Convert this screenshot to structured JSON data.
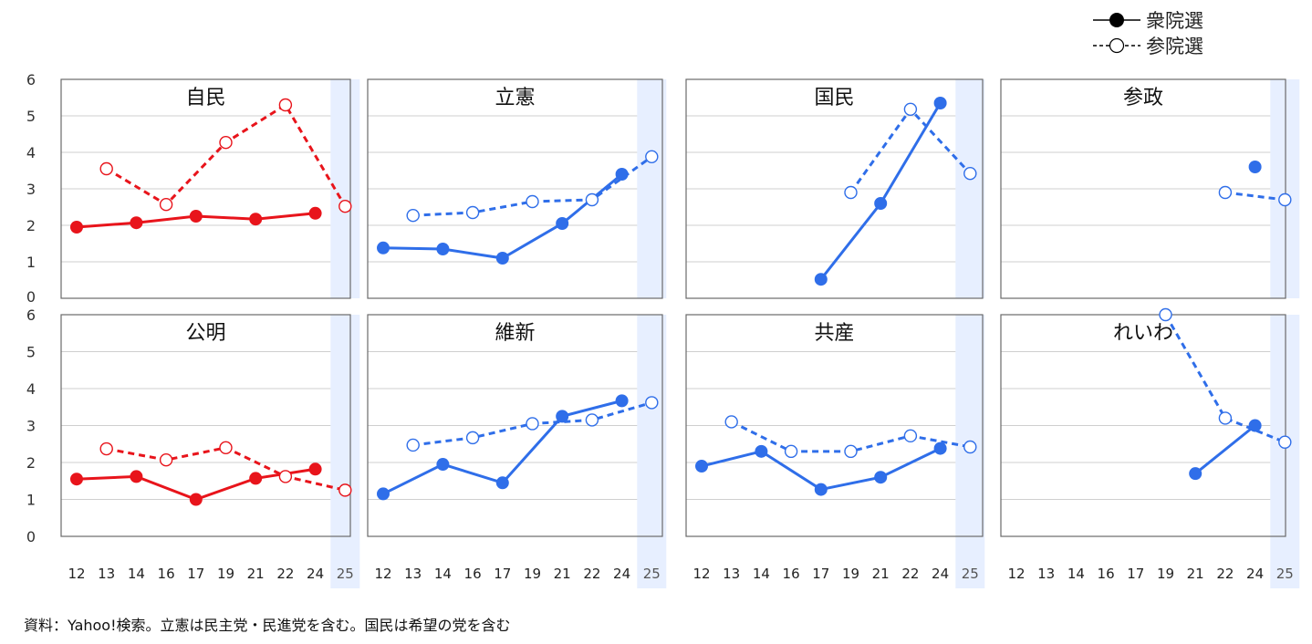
{
  "legend": {
    "shugiin": "衆院選",
    "sangiin": "参院選"
  },
  "source_note": "資料：Yahoo!検索。立憲は民主党・民進党を含む。国民は希望の党を含む",
  "colors": {
    "ldp": "#e8141b",
    "others": "#2f6ee9",
    "highlight": "#e7efff",
    "grid": "#cfcfcf",
    "frame": "#6a6a6a"
  },
  "chart_data": {
    "type": "line",
    "ylim": [
      0,
      6
    ],
    "yticks": [
      "0",
      "1",
      "2",
      "3",
      "4",
      "5",
      "6"
    ],
    "categories": [
      "12",
      "13",
      "14",
      "16",
      "17",
      "19",
      "21",
      "22",
      "24",
      "25"
    ],
    "highlight_category": "25",
    "panels": [
      {
        "name": "自民",
        "color": "ldp",
        "series": [
          {
            "name": "衆院選",
            "values": {
              "12": 1.95,
              "14": 2.07,
              "17": 2.25,
              "21": 2.17,
              "24": 2.33
            }
          },
          {
            "name": "参院選",
            "values": {
              "13": 3.55,
              "16": 2.57,
              "19": 4.27,
              "22": 5.3,
              "25": 2.52
            }
          }
        ]
      },
      {
        "name": "立憲",
        "color": "others",
        "series": [
          {
            "name": "衆院選",
            "values": {
              "12": 1.38,
              "14": 1.35,
              "17": 1.1,
              "21": 2.05,
              "24": 3.4
            }
          },
          {
            "name": "参院選",
            "values": {
              "13": 2.27,
              "16": 2.35,
              "19": 2.65,
              "22": 2.7,
              "25": 3.88
            }
          }
        ]
      },
      {
        "name": "国民",
        "color": "others",
        "series": [
          {
            "name": "衆院選",
            "values": {
              "17": 0.52,
              "21": 2.6,
              "24": 5.35
            }
          },
          {
            "name": "参院選",
            "values": {
              "19": 2.9,
              "22": 5.18,
              "25": 3.42
            }
          }
        ]
      },
      {
        "name": "参政",
        "color": "others",
        "series": [
          {
            "name": "衆院選",
            "values": {
              "24": 3.6
            }
          },
          {
            "name": "参院選",
            "values": {
              "22": 2.9,
              "25": 2.7
            }
          }
        ]
      },
      {
        "name": "公明",
        "color": "ldp",
        "series": [
          {
            "name": "衆院選",
            "values": {
              "12": 1.55,
              "14": 1.62,
              "17": 1.0,
              "21": 1.57,
              "24": 1.82
            }
          },
          {
            "name": "参院選",
            "values": {
              "13": 2.37,
              "16": 2.07,
              "19": 2.4,
              "22": 1.62,
              "25": 1.25
            }
          }
        ]
      },
      {
        "name": "維新",
        "color": "others",
        "series": [
          {
            "name": "衆院選",
            "values": {
              "12": 1.15,
              "14": 1.95,
              "17": 1.45,
              "21": 3.25,
              "24": 3.67
            }
          },
          {
            "name": "参院選",
            "values": {
              "13": 2.47,
              "16": 2.67,
              "19": 3.05,
              "22": 3.15,
              "25": 3.62
            }
          }
        ]
      },
      {
        "name": "共産",
        "color": "others",
        "series": [
          {
            "name": "衆院選",
            "values": {
              "12": 1.9,
              "14": 2.3,
              "17": 1.27,
              "21": 1.6,
              "24": 2.38
            }
          },
          {
            "name": "参院選",
            "values": {
              "13": 3.1,
              "16": 2.3,
              "19": 2.3,
              "22": 2.72,
              "25": 2.42
            }
          }
        ]
      },
      {
        "name": "れいわ",
        "color": "others",
        "series": [
          {
            "name": "衆院選",
            "values": {
              "21": 1.7,
              "24": 3.0
            }
          },
          {
            "name": "参院選",
            "values": {
              "19": 6.0,
              "22": 3.2,
              "25": 2.55
            }
          }
        ]
      }
    ]
  }
}
